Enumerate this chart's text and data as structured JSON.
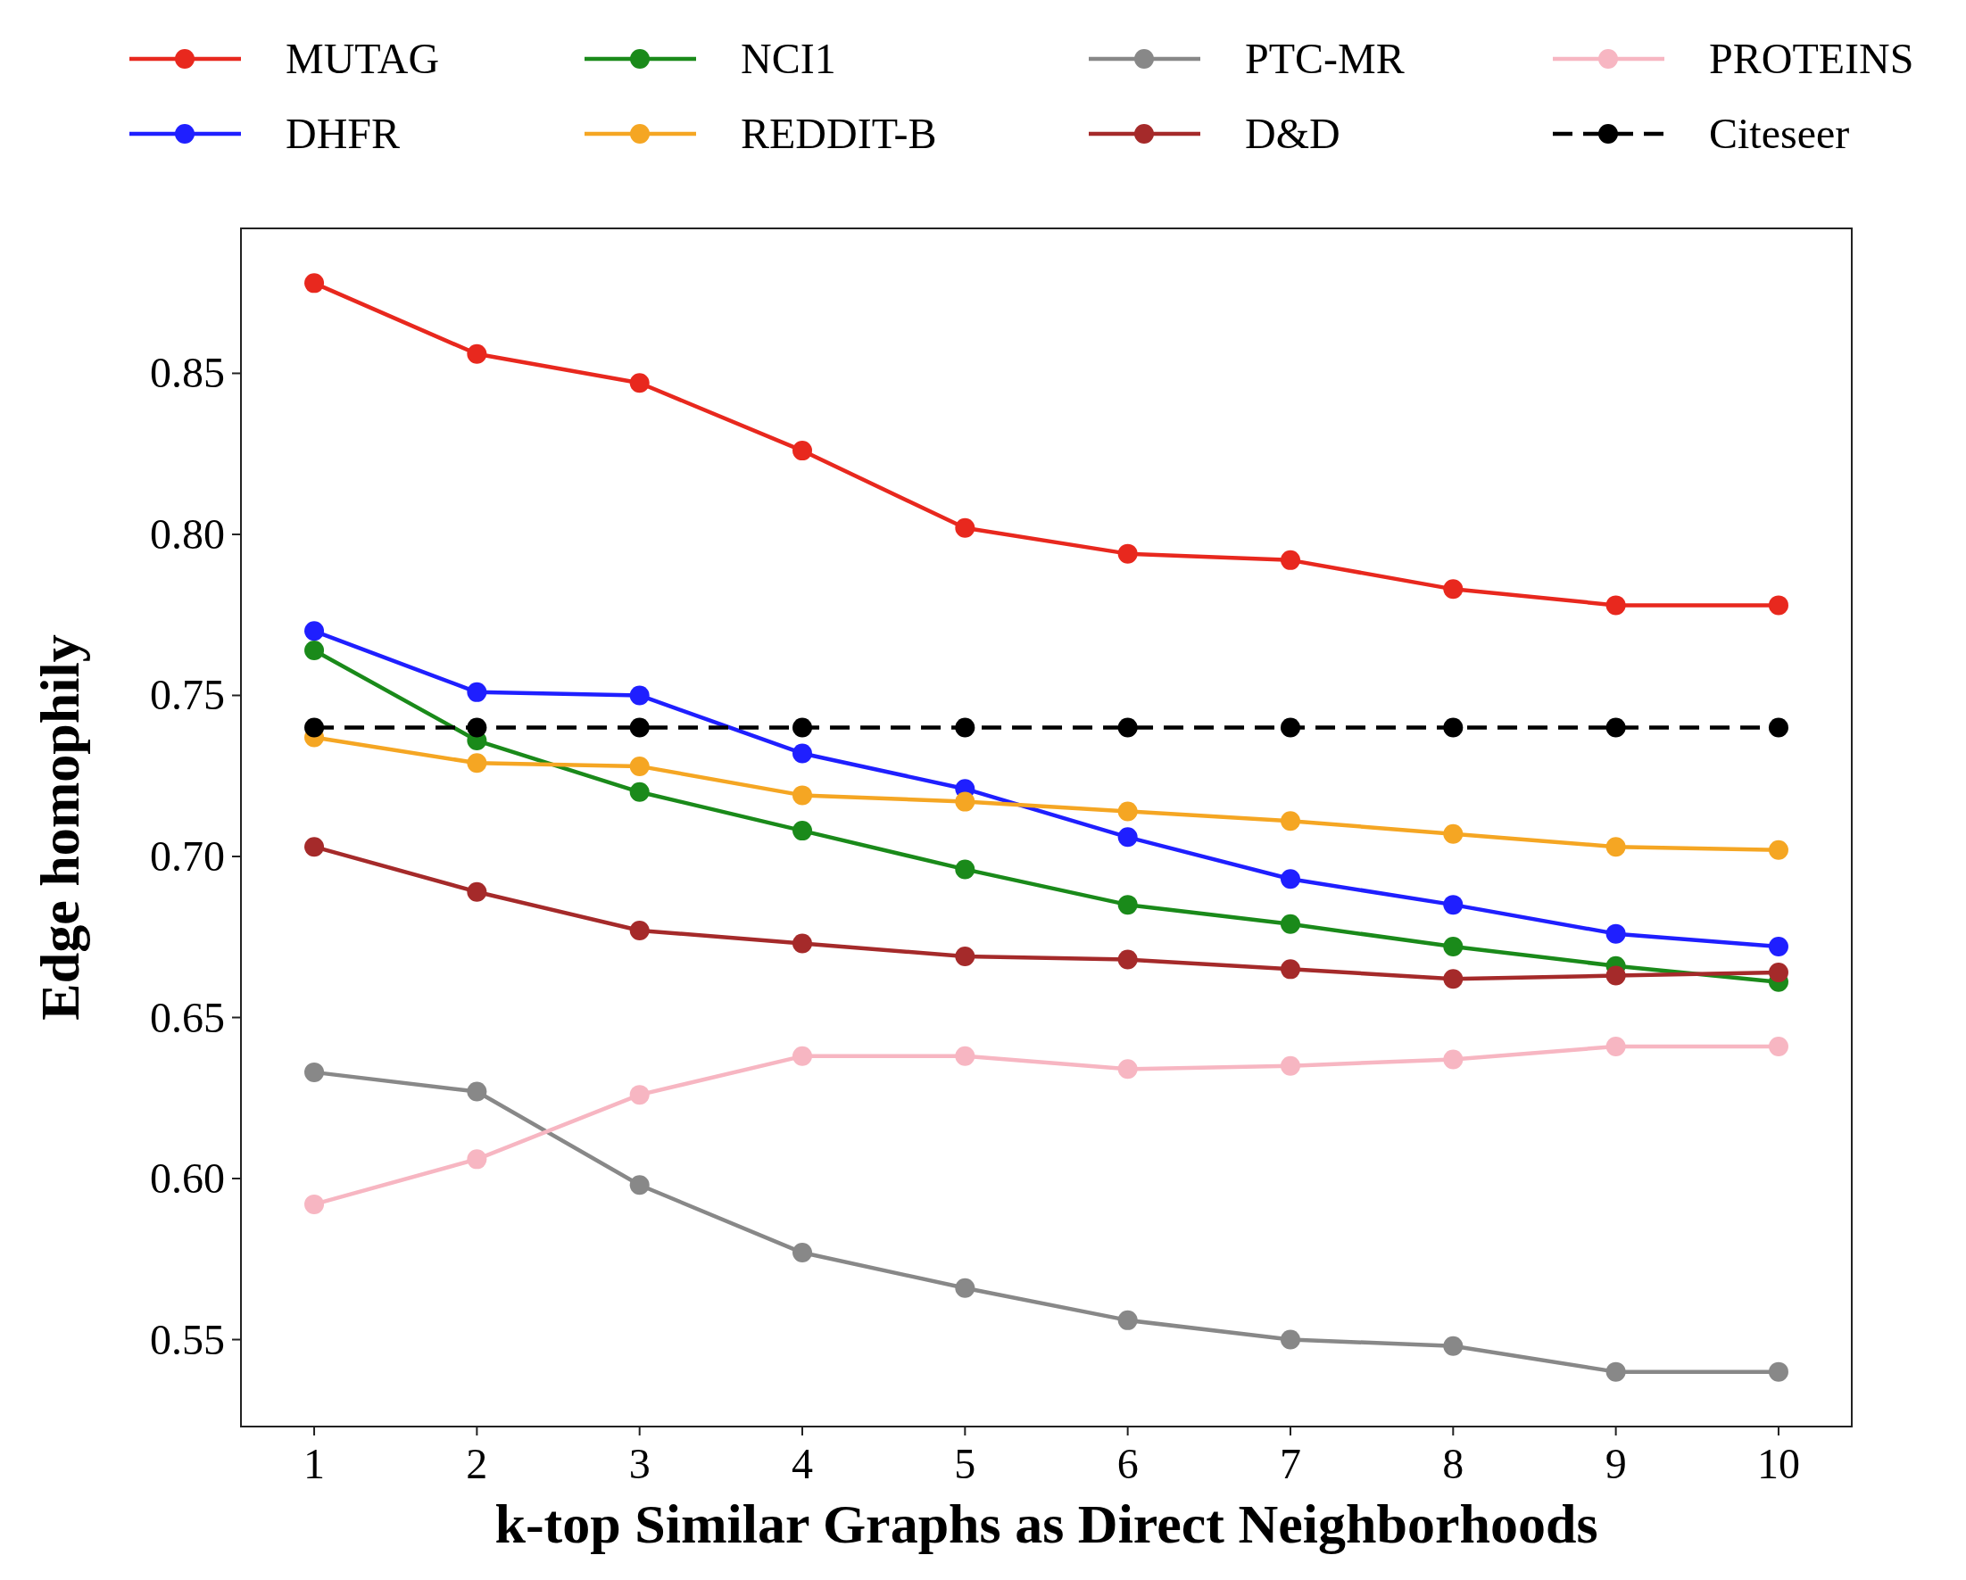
{
  "chart_data": {
    "type": "line",
    "xlabel": "k-top Similar Graphs as Direct Neighborhoods",
    "ylabel": "Edge homophily",
    "x": [
      1,
      2,
      3,
      4,
      5,
      6,
      7,
      8,
      9,
      10
    ],
    "xlim": [
      0.55,
      10.45
    ],
    "xticks": [
      1,
      2,
      3,
      4,
      5,
      6,
      7,
      8,
      9,
      10
    ],
    "ylim": [
      0.523,
      0.895
    ],
    "yticks": [
      {
        "value": 0.55,
        "label": "0.55"
      },
      {
        "value": 0.6,
        "label": "0.60"
      },
      {
        "value": 0.65,
        "label": "0.65"
      },
      {
        "value": 0.7,
        "label": "0.70"
      },
      {
        "value": 0.75,
        "label": "0.75"
      },
      {
        "value": 0.8,
        "label": "0.80"
      },
      {
        "value": 0.85,
        "label": "0.85"
      }
    ],
    "grid": false,
    "legend": "top",
    "marker": "circle",
    "line_style": "solid",
    "series": [
      {
        "name": "MUTAG",
        "color": "#e8281e",
        "values": [
          0.878,
          0.856,
          0.847,
          0.826,
          0.802,
          0.794,
          0.792,
          0.783,
          0.778,
          0.778
        ]
      },
      {
        "name": "DHFR",
        "color": "#1f1fff",
        "values": [
          0.77,
          0.751,
          0.75,
          0.732,
          0.721,
          0.706,
          0.693,
          0.685,
          0.676,
          0.672
        ]
      },
      {
        "name": "NCI1",
        "color": "#1a8a1a",
        "values": [
          0.764,
          0.736,
          0.72,
          0.708,
          0.696,
          0.685,
          0.679,
          0.672,
          0.666,
          0.661
        ]
      },
      {
        "name": "REDDIT-B",
        "color": "#f5a623",
        "values": [
          0.737,
          0.729,
          0.728,
          0.719,
          0.717,
          0.714,
          0.711,
          0.707,
          0.703,
          0.702
        ]
      },
      {
        "name": "PTC-MR",
        "color": "#888888",
        "values": [
          0.633,
          0.627,
          0.598,
          0.577,
          0.566,
          0.556,
          0.55,
          0.548,
          0.54,
          0.54
        ]
      },
      {
        "name": "D&D",
        "color": "#a52a2a",
        "values": [
          0.703,
          0.689,
          0.677,
          0.673,
          0.669,
          0.668,
          0.665,
          0.662,
          0.663,
          0.664
        ]
      },
      {
        "name": "PROTEINS",
        "color": "#f7b6c2",
        "values": [
          0.592,
          0.606,
          0.626,
          0.638,
          0.638,
          0.634,
          0.635,
          0.637,
          0.641,
          0.641
        ]
      },
      {
        "name": "Citeseer",
        "color": "#000000",
        "line_style": "dashed",
        "values": [
          0.74,
          0.74,
          0.74,
          0.74,
          0.74,
          0.74,
          0.74,
          0.74,
          0.74,
          0.74
        ]
      }
    ]
  }
}
